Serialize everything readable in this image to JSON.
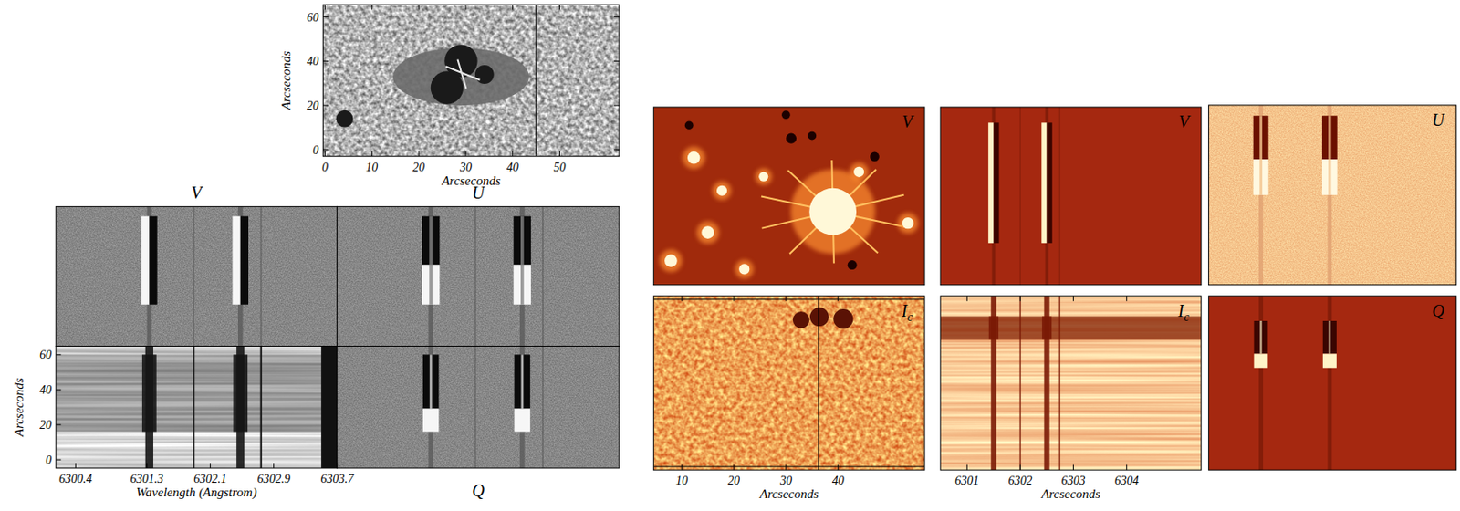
{
  "chart_data": [
    {
      "type": "map",
      "color": "gray",
      "xlabel": "Arcseconds",
      "ylabel": "Arcseconds",
      "xlim": [
        -0.4,
        62.7
      ],
      "ylim": [
        -3,
        65.5
      ],
      "xticks": [
        0,
        10,
        20,
        30,
        40,
        50
      ],
      "yticks": [
        0,
        20,
        40,
        60
      ],
      "slit_x": 45,
      "penumbra": {
        "x": 29,
        "y": 33,
        "rx": 14.5,
        "ry": 13
      },
      "umbrae": [
        {
          "x": 29,
          "y": 40,
          "r": 3.5
        },
        {
          "x": 26,
          "y": 28,
          "r": 3.5
        },
        {
          "x": 34,
          "y": 34,
          "r": 2
        },
        {
          "x": 4.2,
          "y": 14,
          "r": 1.8
        }
      ]
    },
    {
      "type": "spectra",
      "color": "gray",
      "xlabel": "Wavelength (Angstrom)",
      "ylabel": "Arcseconds",
      "xlim": [
        6300.15,
        6303.7
      ],
      "ylim": [
        -4.8,
        64.8
      ],
      "xticks": [
        6300.4,
        6301.3,
        6302.1,
        6302.9,
        6303.7
      ],
      "yticks": [
        0,
        20,
        40,
        60
      ],
      "lines": [
        6301.33,
        6302.48
      ],
      "telluric": [
        6301.89,
        6302.74
      ],
      "signal_y": [
        16,
        60
      ],
      "series": [
        {
          "name": "V",
          "type": "V"
        },
        {
          "name": "U",
          "type": "U"
        },
        {
          "type": "I"
        },
        {
          "name": "Q",
          "type": "Q"
        }
      ]
    },
    {
      "type": "magnetogram",
      "color": "heat",
      "title": "V",
      "xlim": [
        4.6,
        56.6
      ],
      "ylim": [
        0,
        34
      ],
      "tick_labels": false,
      "patches": [
        {
          "x": 39,
          "y": 14,
          "r": 4.5,
          "sign": 1
        },
        {
          "x": 12.3,
          "y": 24.3,
          "r": 1.2,
          "sign": 1
        },
        {
          "x": 17.7,
          "y": 18,
          "r": 1,
          "sign": 1
        },
        {
          "x": 15,
          "y": 10,
          "r": 1.2,
          "sign": 1
        },
        {
          "x": 25.7,
          "y": 20.7,
          "r": 0.9,
          "sign": 1
        },
        {
          "x": 31,
          "y": 28,
          "r": 1,
          "sign": -1
        },
        {
          "x": 35,
          "y": 28.5,
          "r": 0.8,
          "sign": -1
        },
        {
          "x": 44,
          "y": 21.6,
          "r": 1,
          "sign": 1
        },
        {
          "x": 47,
          "y": 24.5,
          "r": 0.9,
          "sign": -1
        },
        {
          "x": 53.4,
          "y": 11.8,
          "r": 1.1,
          "sign": 1
        },
        {
          "x": 7.9,
          "y": 4.6,
          "r": 1.2,
          "sign": 1
        },
        {
          "x": 22,
          "y": 3,
          "r": 1,
          "sign": 1
        },
        {
          "x": 42.7,
          "y": 3.8,
          "r": 0.9,
          "sign": -1
        },
        {
          "x": 11.4,
          "y": 30.5,
          "r": 0.8,
          "sign": -1
        },
        {
          "x": 30,
          "y": 32.5,
          "r": 0.8,
          "sign": -1
        }
      ]
    },
    {
      "type": "spectra",
      "color": "heat",
      "xlim": [
        6300.5,
        6305.4
      ],
      "ylim": [
        0,
        34
      ],
      "tick_labels": false,
      "lines": [
        6301.5,
        6302.5
      ],
      "telluric": [
        6302.0,
        6302.74
      ],
      "signal_y": [
        8,
        31
      ],
      "series": [
        {
          "name": "V",
          "type": "V"
        }
      ]
    },
    {
      "type": "spectra",
      "color": "heat",
      "xlim": [
        6300.74,
        6304.34
      ],
      "ylim": [
        0,
        34
      ],
      "tick_labels": false,
      "lines": [
        6301.5,
        6302.5
      ],
      "signal_y": [
        17,
        32
      ],
      "series": [
        {
          "name": "U",
          "type": "U"
        }
      ]
    },
    {
      "type": "map",
      "color": "heat",
      "title": "Ic",
      "xlabel": "Arcseconds",
      "xlim": [
        4.6,
        56.6
      ],
      "ylim": [
        0,
        33.4
      ],
      "xticks": [
        10,
        20,
        30,
        40
      ],
      "tick_labels": "x",
      "slit_x": 36.25,
      "umbrae": [
        {
          "x": 32.9,
          "y": 28.8,
          "r": 1.6
        },
        {
          "x": 36.4,
          "y": 29.4,
          "r": 1.8
        },
        {
          "x": 41,
          "y": 29,
          "r": 1.9
        }
      ]
    },
    {
      "type": "spectra",
      "color": "heat",
      "xlabel": "Arcseconds",
      "xlim": [
        6300.5,
        6305.4
      ],
      "ylim": [
        0,
        33.4
      ],
      "xticks": [
        6301,
        6302,
        6303,
        6304
      ],
      "tick_labels": "x",
      "lines": [
        6301.5,
        6302.5
      ],
      "telluric": [
        6302.0,
        6302.74
      ],
      "signal_y": [
        25,
        29.5
      ],
      "series": [
        {
          "name": "Ic",
          "type": "I"
        }
      ]
    },
    {
      "type": "spectra",
      "color": "heat",
      "xlim": [
        6300.74,
        6304.34
      ],
      "ylim": [
        0,
        33.4
      ],
      "tick_labels": false,
      "lines": [
        6301.5,
        6302.5
      ],
      "signal_y": [
        19.6,
        28.6
      ],
      "series": [
        {
          "name": "Q",
          "type": "Q"
        }
      ]
    }
  ]
}
